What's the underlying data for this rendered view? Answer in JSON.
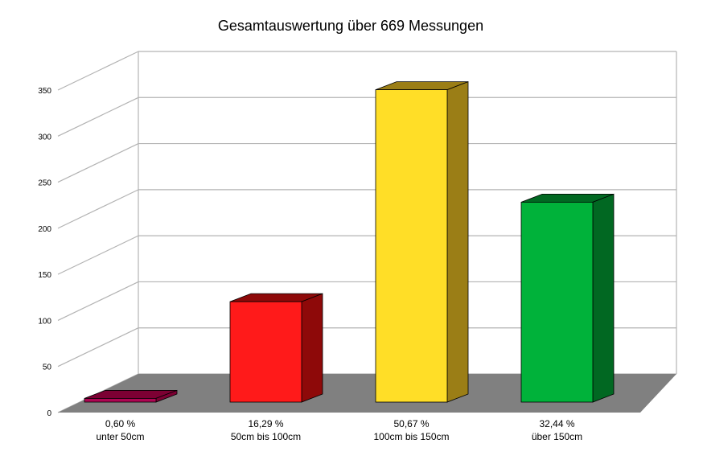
{
  "chart_data": {
    "type": "bar",
    "title": "Gesamtauswertung über 669 Messungen",
    "categories": [
      [
        "0,60 %",
        "unter 50cm"
      ],
      [
        "16,29 %",
        "50cm bis 100cm"
      ],
      [
        "50,67 %",
        "100cm bis 150cm"
      ],
      [
        "32,44 %",
        "über 150cm"
      ]
    ],
    "values": [
      4,
      109,
      339,
      217
    ],
    "ylim": [
      0,
      350
    ],
    "yticks": [
      "0",
      "50",
      "100",
      "150",
      "200",
      "250",
      "300",
      "350"
    ],
    "grid": true,
    "style": "3d",
    "colors": [
      {
        "front": "#ad0552",
        "side": "#7c0033",
        "top": "#7c0033"
      },
      {
        "front": "#ff1a1a",
        "side": "#8e0909",
        "top": "#8e0909"
      },
      {
        "front": "#ffde27",
        "side": "#9b7e16",
        "top": "#9b7e16"
      },
      {
        "front": "#00b23a",
        "side": "#016822",
        "top": "#016822"
      }
    ],
    "floor_color": "#808080",
    "grid_color": "#b3b3b3"
  }
}
